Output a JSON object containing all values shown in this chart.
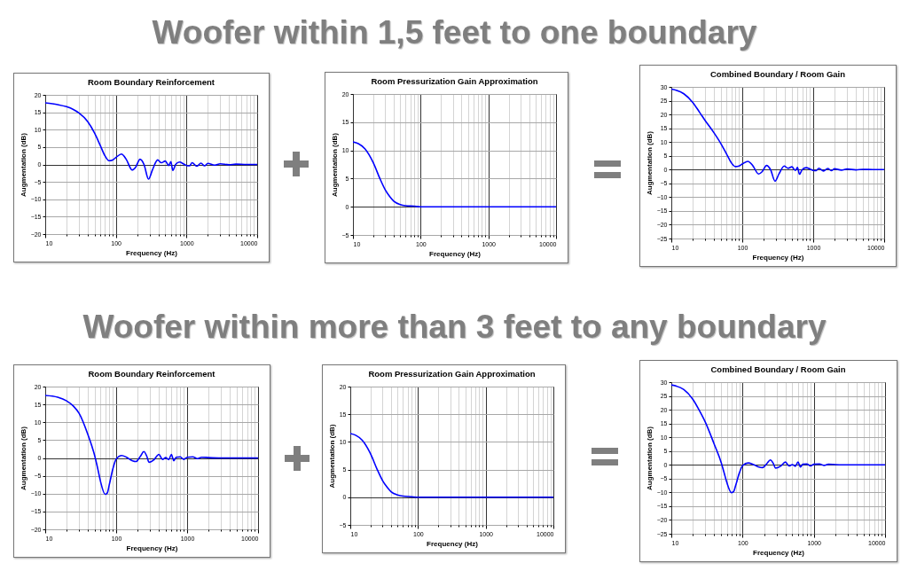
{
  "chart_data": [
    {
      "type": "other",
      "title": "Woofer within 1,5 feet to one boundary"
    },
    {
      "type": "line",
      "title": "Room Boundary Reinforcement",
      "xlabel": "Frequency (Hz)",
      "ylabel": "Augmentation (dB)",
      "log": "x",
      "grid": true,
      "xlim": [
        10,
        10000
      ],
      "ylim": [
        -20,
        20
      ],
      "yticks": [
        -20,
        -15,
        -10,
        -5,
        0,
        5,
        10,
        15,
        20
      ],
      "xticks": [
        10,
        {
          "value": 20,
          "label": null
        },
        {
          "value": 30,
          "label": null
        },
        {
          "value": 40,
          "label": null
        },
        {
          "value": 50,
          "label": null
        },
        {
          "value": 60,
          "label": null
        },
        {
          "value": 70,
          "label": null
        },
        {
          "value": 80,
          "label": null
        },
        {
          "value": 90,
          "label": null
        },
        100,
        {
          "value": 200,
          "label": null
        },
        {
          "value": 300,
          "label": null
        },
        {
          "value": 400,
          "label": null
        },
        {
          "value": 500,
          "label": null
        },
        {
          "value": 600,
          "label": null
        },
        {
          "value": 700,
          "label": null
        },
        {
          "value": 800,
          "label": null
        },
        {
          "value": 900,
          "label": null
        },
        1000,
        {
          "value": 2000,
          "label": null
        },
        {
          "value": 3000,
          "label": null
        },
        {
          "value": 4000,
          "label": null
        },
        {
          "value": 5000,
          "label": null
        },
        {
          "value": 6000,
          "label": null
        },
        {
          "value": 7000,
          "label": null
        },
        {
          "value": 8000,
          "label": null
        },
        {
          "value": 9000,
          "label": null
        },
        10000
      ],
      "x": [
        10,
        15,
        20,
        25,
        30,
        40,
        50,
        60,
        70,
        80,
        90,
        100,
        120,
        140,
        170,
        190,
        220,
        250,
        290,
        330,
        390,
        440,
        500,
        560,
        600,
        640,
        700,
        800,
        900,
        1000,
        1100,
        1200,
        1400,
        1600,
        1800,
        2000,
        2500,
        3000,
        4000,
        5000,
        7000,
        10000
      ],
      "series": [
        {
          "color": "#0000ff",
          "values": [
            17.7,
            17.2,
            16.6,
            15.8,
            14.8,
            12.3,
            9.0,
            5.5,
            2.5,
            1.1,
            1.3,
            2.0,
            3.0,
            1.5,
            -1.6,
            -0.8,
            1.5,
            0,
            -4.2,
            -1.5,
            1.3,
            0.5,
            1.0,
            -0.3,
            0.8,
            -1.7,
            0,
            0.7,
            0.2,
            -0.3,
            -0.4,
            0.5,
            -0.5,
            0.4,
            -0.4,
            0.3,
            -0.2,
            0.2,
            -0.1,
            0.1,
            0,
            0
          ]
        }
      ]
    },
    {
      "type": "line",
      "title": "Room Pressurization Gain Approximation",
      "xlabel": "Frequency (Hz)",
      "ylabel": "Augmentation (dB)",
      "log": "x",
      "grid": true,
      "xlim": [
        10,
        10000
      ],
      "ylim": [
        -5,
        20
      ],
      "yticks": [
        -5,
        0,
        5,
        10,
        15,
        20
      ],
      "xticks": [
        10,
        {
          "value": 20,
          "label": null
        },
        {
          "value": 30,
          "label": null
        },
        {
          "value": 40,
          "label": null
        },
        {
          "value": 50,
          "label": null
        },
        {
          "value": 60,
          "label": null
        },
        {
          "value": 70,
          "label": null
        },
        {
          "value": 80,
          "label": null
        },
        {
          "value": 90,
          "label": null
        },
        100,
        {
          "value": 200,
          "label": null
        },
        {
          "value": 300,
          "label": null
        },
        {
          "value": 400,
          "label": null
        },
        {
          "value": 500,
          "label": null
        },
        {
          "value": 600,
          "label": null
        },
        {
          "value": 700,
          "label": null
        },
        {
          "value": 800,
          "label": null
        },
        {
          "value": 900,
          "label": null
        },
        1000,
        {
          "value": 2000,
          "label": null
        },
        {
          "value": 3000,
          "label": null
        },
        {
          "value": 4000,
          "label": null
        },
        {
          "value": 5000,
          "label": null
        },
        {
          "value": 6000,
          "label": null
        },
        {
          "value": 7000,
          "label": null
        },
        {
          "value": 8000,
          "label": null
        },
        {
          "value": 9000,
          "label": null
        },
        10000
      ],
      "x": [
        10,
        12,
        15,
        20,
        25,
        30,
        35,
        40,
        50,
        60,
        80,
        100,
        1000,
        10000
      ],
      "series": [
        {
          "color": "#0000ff",
          "values": [
            11.5,
            11.2,
            10.3,
            7.8,
            5.0,
            3.0,
            1.8,
            1.0,
            0.4,
            0.2,
            0.1,
            0,
            0,
            0
          ]
        }
      ]
    },
    {
      "type": "line",
      "title": "Combined Boundary / Room Gain",
      "xlabel": "Frequency (Hz)",
      "ylabel": "Augmentation (dB)",
      "log": "x",
      "grid": true,
      "xlim": [
        10,
        10000
      ],
      "ylim": [
        -25,
        30
      ],
      "yticks": [
        -25,
        -20,
        -15,
        -10,
        -5,
        0,
        5,
        10,
        15,
        20,
        25,
        30
      ],
      "xticks": [
        10,
        {
          "value": 20,
          "label": null
        },
        {
          "value": 30,
          "label": null
        },
        {
          "value": 40,
          "label": null
        },
        {
          "value": 50,
          "label": null
        },
        {
          "value": 60,
          "label": null
        },
        {
          "value": 70,
          "label": null
        },
        {
          "value": 80,
          "label": null
        },
        {
          "value": 90,
          "label": null
        },
        100,
        {
          "value": 200,
          "label": null
        },
        {
          "value": 300,
          "label": null
        },
        {
          "value": 400,
          "label": null
        },
        {
          "value": 500,
          "label": null
        },
        {
          "value": 600,
          "label": null
        },
        {
          "value": 700,
          "label": null
        },
        {
          "value": 800,
          "label": null
        },
        {
          "value": 900,
          "label": null
        },
        1000,
        {
          "value": 2000,
          "label": null
        },
        {
          "value": 3000,
          "label": null
        },
        {
          "value": 4000,
          "label": null
        },
        {
          "value": 5000,
          "label": null
        },
        {
          "value": 6000,
          "label": null
        },
        {
          "value": 7000,
          "label": null
        },
        {
          "value": 8000,
          "label": null
        },
        {
          "value": 9000,
          "label": null
        },
        10000
      ],
      "x": [
        10,
        15,
        20,
        25,
        30,
        40,
        50,
        60,
        70,
        80,
        90,
        100,
        120,
        140,
        170,
        190,
        220,
        250,
        290,
        330,
        390,
        440,
        500,
        560,
        600,
        640,
        700,
        800,
        900,
        1000,
        1100,
        1200,
        1400,
        1600,
        1800,
        2000,
        2500,
        3000,
        4000,
        5000,
        7000,
        10000
      ],
      "series": [
        {
          "color": "#0000ff",
          "values": [
            29.2,
            27.5,
            24.4,
            20.8,
            17.8,
            13.3,
            9.4,
            5.7,
            2.5,
            1.1,
            1.3,
            2.0,
            3.0,
            1.5,
            -1.6,
            -0.8,
            1.5,
            0,
            -4.2,
            -1.5,
            1.3,
            0.5,
            1.0,
            -0.3,
            0.8,
            -1.7,
            0,
            0.7,
            0.2,
            -0.3,
            -0.4,
            0.5,
            -0.5,
            0.4,
            -0.4,
            0.3,
            -0.2,
            0.2,
            -0.1,
            0.1,
            0,
            0
          ]
        }
      ]
    },
    {
      "type": "other",
      "title": "Woofer within more than 3 feet to any boundary"
    },
    {
      "type": "line",
      "title": "Room Boundary Reinforcement",
      "xlabel": "Frequency (Hz)",
      "ylabel": "Augmentation (dB)",
      "log": "x",
      "grid": true,
      "xlim": [
        10,
        10000
      ],
      "ylim": [
        -20,
        20
      ],
      "yticks": [
        -20,
        -15,
        -10,
        -5,
        0,
        5,
        10,
        15,
        20
      ],
      "xticks": [
        10,
        {
          "value": 20,
          "label": null
        },
        {
          "value": 30,
          "label": null
        },
        {
          "value": 40,
          "label": null
        },
        {
          "value": 50,
          "label": null
        },
        {
          "value": 60,
          "label": null
        },
        {
          "value": 70,
          "label": null
        },
        {
          "value": 80,
          "label": null
        },
        {
          "value": 90,
          "label": null
        },
        100,
        {
          "value": 200,
          "label": null
        },
        {
          "value": 300,
          "label": null
        },
        {
          "value": 400,
          "label": null
        },
        {
          "value": 500,
          "label": null
        },
        {
          "value": 600,
          "label": null
        },
        {
          "value": 700,
          "label": null
        },
        {
          "value": 800,
          "label": null
        },
        {
          "value": 900,
          "label": null
        },
        1000,
        {
          "value": 2000,
          "label": null
        },
        {
          "value": 3000,
          "label": null
        },
        {
          "value": 4000,
          "label": null
        },
        {
          "value": 5000,
          "label": null
        },
        {
          "value": 6000,
          "label": null
        },
        {
          "value": 7000,
          "label": null
        },
        {
          "value": 8000,
          "label": null
        },
        {
          "value": 9000,
          "label": null
        },
        10000
      ],
      "x": [
        10,
        15,
        20,
        25,
        30,
        40,
        50,
        55,
        60,
        70,
        75,
        80,
        90,
        100,
        120,
        140,
        170,
        190,
        220,
        245,
        270,
        290,
        340,
        400,
        450,
        500,
        550,
        600,
        650,
        700,
        800,
        900,
        1000,
        1200,
        1400,
        1600,
        2000,
        3000,
        10000
      ],
      "series": [
        {
          "color": "#0000ff",
          "values": [
            17.5,
            17.0,
            16.0,
            14.5,
            12.5,
            6.5,
            0.5,
            -3.0,
            -6.5,
            -10.2,
            -9.8,
            -7.5,
            -3.0,
            -0.3,
            0.7,
            0.2,
            -0.8,
            -1.0,
            0.5,
            1.8,
            0.5,
            -1.2,
            -0.5,
            1.0,
            -0.4,
            0.1,
            -0.5,
            1.0,
            -0.8,
            0.2,
            0.3,
            -0.4,
            0.2,
            0.3,
            -0.2,
            0.2,
            0.1,
            0,
            0
          ]
        }
      ]
    },
    {
      "type": "line",
      "title": "Room Pressurization Gain Approximation",
      "xlabel": "Frequency (Hz)",
      "ylabel": "Augmentation (dB)",
      "log": "x",
      "grid": true,
      "xlim": [
        10,
        10000
      ],
      "ylim": [
        -5,
        20
      ],
      "yticks": [
        -5,
        0,
        5,
        10,
        15,
        20
      ],
      "xticks": [
        10,
        {
          "value": 20,
          "label": null
        },
        {
          "value": 30,
          "label": null
        },
        {
          "value": 40,
          "label": null
        },
        {
          "value": 50,
          "label": null
        },
        {
          "value": 60,
          "label": null
        },
        {
          "value": 70,
          "label": null
        },
        {
          "value": 80,
          "label": null
        },
        {
          "value": 90,
          "label": null
        },
        100,
        {
          "value": 200,
          "label": null
        },
        {
          "value": 300,
          "label": null
        },
        {
          "value": 400,
          "label": null
        },
        {
          "value": 500,
          "label": null
        },
        {
          "value": 600,
          "label": null
        },
        {
          "value": 700,
          "label": null
        },
        {
          "value": 800,
          "label": null
        },
        {
          "value": 900,
          "label": null
        },
        1000,
        {
          "value": 2000,
          "label": null
        },
        {
          "value": 3000,
          "label": null
        },
        {
          "value": 4000,
          "label": null
        },
        {
          "value": 5000,
          "label": null
        },
        {
          "value": 6000,
          "label": null
        },
        {
          "value": 7000,
          "label": null
        },
        {
          "value": 8000,
          "label": null
        },
        {
          "value": 9000,
          "label": null
        },
        10000
      ],
      "x": [
        10,
        12,
        15,
        20,
        25,
        30,
        35,
        40,
        50,
        60,
        80,
        100,
        1000,
        10000
      ],
      "series": [
        {
          "color": "#0000ff",
          "values": [
            11.5,
            11.2,
            10.3,
            7.8,
            5.0,
            3.0,
            1.8,
            1.0,
            0.4,
            0.2,
            0.1,
            0,
            0,
            0
          ]
        }
      ]
    },
    {
      "type": "line",
      "title": "Combined Boundary / Room Gain",
      "xlabel": "Frequency (Hz)",
      "ylabel": "Augmentation (dB)",
      "log": "x",
      "grid": true,
      "xlim": [
        10,
        10000
      ],
      "ylim": [
        -25,
        30
      ],
      "yticks": [
        -25,
        -20,
        -15,
        -10,
        -5,
        0,
        5,
        10,
        15,
        20,
        25,
        30
      ],
      "xticks": [
        10,
        {
          "value": 20,
          "label": null
        },
        {
          "value": 30,
          "label": null
        },
        {
          "value": 40,
          "label": null
        },
        {
          "value": 50,
          "label": null
        },
        {
          "value": 60,
          "label": null
        },
        {
          "value": 70,
          "label": null
        },
        {
          "value": 80,
          "label": null
        },
        {
          "value": 90,
          "label": null
        },
        100,
        {
          "value": 200,
          "label": null
        },
        {
          "value": 300,
          "label": null
        },
        {
          "value": 400,
          "label": null
        },
        {
          "value": 500,
          "label": null
        },
        {
          "value": 600,
          "label": null
        },
        {
          "value": 700,
          "label": null
        },
        {
          "value": 800,
          "label": null
        },
        {
          "value": 900,
          "label": null
        },
        1000,
        {
          "value": 2000,
          "label": null
        },
        {
          "value": 3000,
          "label": null
        },
        {
          "value": 4000,
          "label": null
        },
        {
          "value": 5000,
          "label": null
        },
        {
          "value": 6000,
          "label": null
        },
        {
          "value": 7000,
          "label": null
        },
        {
          "value": 8000,
          "label": null
        },
        {
          "value": 9000,
          "label": null
        },
        10000
      ],
      "x": [
        10,
        15,
        20,
        25,
        30,
        40,
        50,
        55,
        60,
        70,
        75,
        80,
        90,
        100,
        120,
        140,
        170,
        190,
        220,
        245,
        270,
        290,
        340,
        400,
        450,
        500,
        550,
        600,
        650,
        700,
        800,
        900,
        1000,
        1200,
        1400,
        1600,
        2000,
        3000,
        10000
      ],
      "series": [
        {
          "color": "#0000ff",
          "values": [
            29.0,
            27.3,
            23.8,
            19.5,
            15.5,
            7.5,
            0.9,
            -2.8,
            -6.3,
            -10.1,
            -9.7,
            -7.5,
            -3.0,
            -0.3,
            0.7,
            0.2,
            -0.8,
            -1.0,
            0.5,
            1.8,
            0.5,
            -1.2,
            -0.5,
            1.0,
            -0.4,
            0.1,
            -0.5,
            1.0,
            -0.8,
            0.2,
            0.3,
            -0.4,
            0.2,
            0.3,
            -0.2,
            0.2,
            0.1,
            0,
            0
          ]
        }
      ]
    }
  ]
}
